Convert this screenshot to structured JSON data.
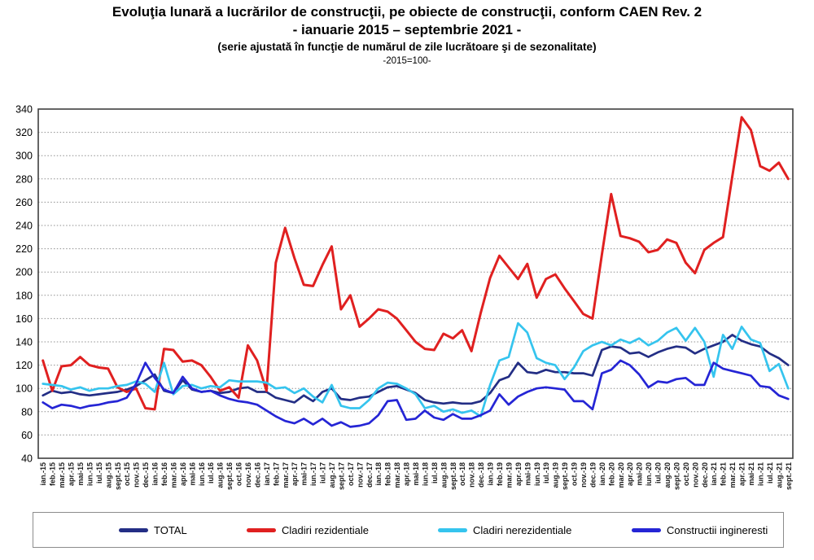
{
  "title": {
    "line1": "Evoluţia lunară a lucrărilor de construcţii, pe obiecte de construcţii, conform CAEN Rev. 2",
    "line2": "- ianuarie 2015 – septembrie 2021 -",
    "line3": "(serie ajustată în funcţie de numărul de zile lucrătoare şi de sezonalitate)",
    "line4": "-2015=100-"
  },
  "chart_data": {
    "type": "line",
    "title": "Evoluţia lunară a lucrărilor de construcţii, pe obiecte de construcţii, conform CAEN Rev. 2 - ianuarie 2015 – septembrie 2021 -",
    "xlabel": "",
    "ylabel": "",
    "ylim": [
      40,
      340
    ],
    "ytick_step": 20,
    "grid": true,
    "legend_position": "bottom",
    "x": [
      "ian.-15",
      "feb.-15",
      "mar.-15",
      "apr.-15",
      "mai-15",
      "iun.-15",
      "iul.-15",
      "aug.-15",
      "sept.-15",
      "oct.-15",
      "nov.-15",
      "dec.-15",
      "ian.-16",
      "feb.-16",
      "mar.-16",
      "apr.-16",
      "mai-16",
      "iun.-16",
      "iul.-16",
      "aug.-16",
      "sept.-16",
      "oct.-16",
      "nov.-16",
      "dec.-16",
      "ian.-17",
      "feb.-17",
      "mar.-17",
      "apr.-17",
      "mai-17",
      "iun.-17",
      "iul.-17",
      "aug.-17",
      "sept.-17",
      "oct.-17",
      "nov.-17",
      "dec.-17",
      "ian.-18",
      "feb.-18",
      "mar.-18",
      "apr.-18",
      "mai-18",
      "iun.-18",
      "iul.-18",
      "aug.-18",
      "sept.-18",
      "oct.-18",
      "nov.-18",
      "dec.-18",
      "ian.-19",
      "feb.-19",
      "mar.-19",
      "apr.-19",
      "mai-19",
      "iun.-19",
      "iul.-19",
      "aug.-19",
      "sept.-19",
      "oct.-19",
      "nov.-19",
      "dec.-19",
      "ian.-20",
      "feb.-20",
      "mar.-20",
      "apr.-20",
      "mai-20",
      "iun.-20",
      "iul.-20",
      "aug.-20",
      "sept.-20",
      "oct.-20",
      "nov.-20",
      "dec.-20",
      "ian.-21",
      "feb.-21",
      "mar.-21",
      "apr.-21",
      "mai-21",
      "iun.-21",
      "iul.-21",
      "aug.-21",
      "sept.-21"
    ],
    "series": [
      {
        "name": "TOTAL",
        "color": "#232e85",
        "values": [
          94,
          98,
          96,
          97,
          95,
          94,
          95,
          96,
          97,
          99,
          102,
          107,
          112,
          98,
          96,
          107,
          99,
          97,
          98,
          96,
          97,
          100,
          101,
          97,
          97,
          92,
          90,
          88,
          94,
          89,
          97,
          100,
          91,
          90,
          92,
          93,
          97,
          101,
          102,
          99,
          96,
          90,
          88,
          87,
          88,
          87,
          87,
          89,
          96,
          107,
          110,
          122,
          114,
          113,
          116,
          114,
          114,
          113,
          113,
          111,
          133,
          136,
          135,
          130,
          131,
          127,
          131,
          134,
          136,
          135,
          130,
          134,
          137,
          140,
          146,
          141,
          138,
          136,
          130,
          126,
          120
        ]
      },
      {
        "name": "Cladiri rezidentiale",
        "color": "#e02020",
        "values": [
          124,
          98,
          119,
          120,
          127,
          120,
          118,
          117,
          101,
          97,
          100,
          83,
          82,
          134,
          133,
          123,
          124,
          120,
          110,
          98,
          101,
          92,
          137,
          124,
          98,
          208,
          238,
          212,
          189,
          188,
          206,
          222,
          168,
          180,
          153,
          160,
          168,
          166,
          160,
          150,
          140,
          134,
          133,
          147,
          143,
          150,
          132,
          165,
          195,
          214,
          204,
          194,
          207,
          178,
          194,
          198,
          186,
          175,
          164,
          160,
          215,
          267,
          231,
          229,
          226,
          217,
          219,
          228,
          225,
          208,
          199,
          219,
          225,
          230,
          282,
          333,
          322,
          291,
          287,
          294,
          280
        ]
      },
      {
        "name": "Cladiri nerezidentiale",
        "color": "#35c4ee",
        "values": [
          104,
          103,
          102,
          99,
          101,
          98,
          100,
          100,
          102,
          103,
          106,
          104,
          97,
          122,
          95,
          102,
          103,
          100,
          102,
          101,
          107,
          106,
          106,
          106,
          105,
          100,
          101,
          96,
          100,
          93,
          88,
          103,
          85,
          83,
          83,
          90,
          100,
          105,
          104,
          100,
          95,
          83,
          85,
          80,
          82,
          79,
          81,
          76,
          103,
          124,
          127,
          156,
          148,
          126,
          122,
          120,
          108,
          118,
          132,
          137,
          140,
          137,
          142,
          139,
          143,
          137,
          141,
          148,
          152,
          141,
          152,
          140,
          110,
          146,
          134,
          153,
          142,
          139,
          115,
          121,
          100
        ]
      },
      {
        "name": "Constructii ingineresti",
        "color": "#2525d5",
        "values": [
          88,
          83,
          86,
          85,
          83,
          85,
          86,
          88,
          89,
          92,
          104,
          122,
          109,
          99,
          96,
          110,
          100,
          97,
          98,
          94,
          91,
          89,
          88,
          86,
          81,
          76,
          72,
          70,
          74,
          69,
          74,
          68,
          71,
          67,
          68,
          70,
          77,
          89,
          90,
          73,
          74,
          81,
          75,
          73,
          78,
          74,
          74,
          77,
          81,
          95,
          86,
          93,
          97,
          100,
          101,
          100,
          99,
          89,
          89,
          82,
          113,
          116,
          124,
          120,
          112,
          101,
          106,
          105,
          108,
          109,
          103,
          103,
          122,
          117,
          115,
          113,
          111,
          102,
          101,
          94,
          91
        ]
      }
    ]
  }
}
